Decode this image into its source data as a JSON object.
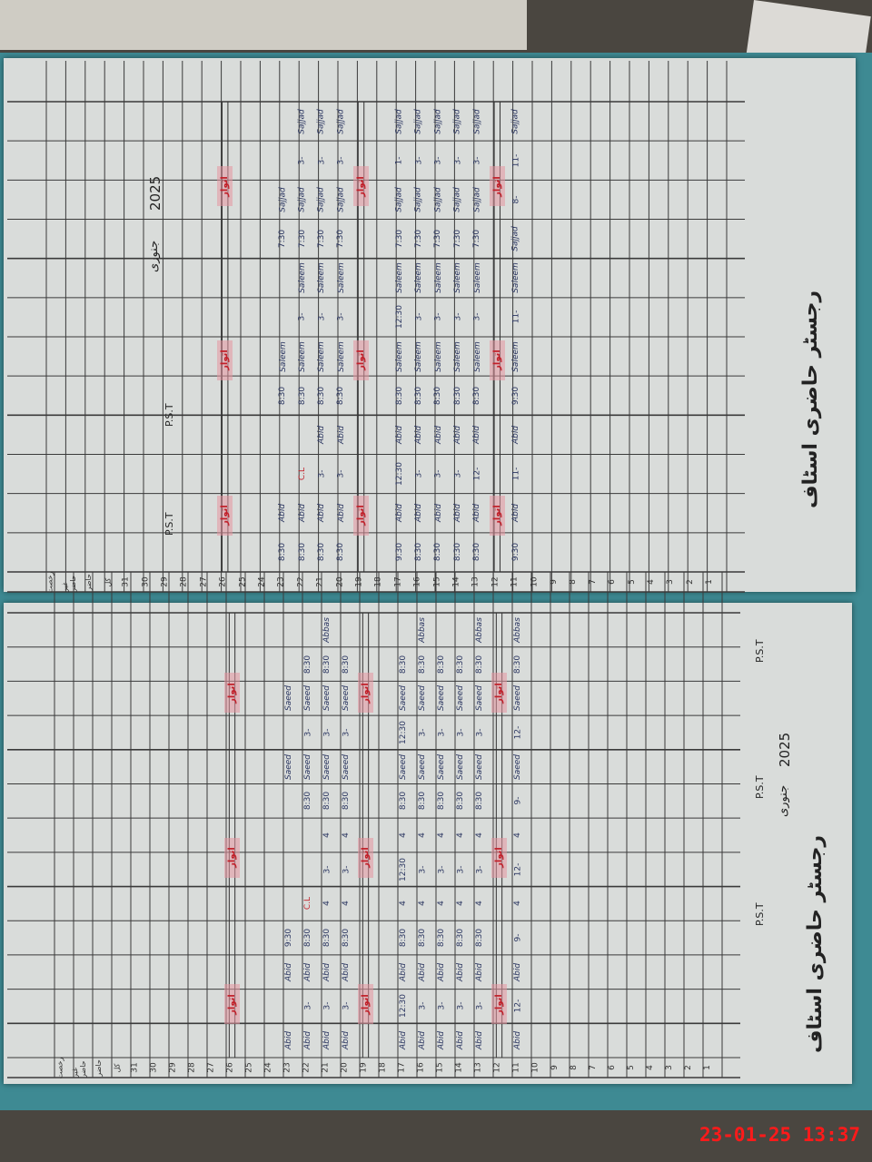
{
  "timestamp": "23-01-25 13:37",
  "colors": {
    "ink": "#2a3560",
    "sunday_red": "#c2202a",
    "folder": "#3e8a93",
    "paper": "#d9dcda"
  },
  "pages": [
    {
      "title": "رجسٹر حاضری اسٹاف",
      "year": "2025",
      "month": "جنوری",
      "staff_labels": [
        "P.S.T",
        "P.S.T"
      ],
      "day_numbers": [
        "1",
        "2",
        "3",
        "4",
        "5",
        "6",
        "7",
        "8",
        "9",
        "10",
        "11",
        "12",
        "13",
        "14",
        "15",
        "16",
        "17",
        "18",
        "19",
        "20",
        "21",
        "22",
        "23",
        "24",
        "25",
        "26",
        "27",
        "28",
        "29",
        "30",
        "31"
      ],
      "sunday_label": "اتوار",
      "sundays": [
        12,
        19,
        26
      ],
      "entries": [
        {
          "day": 11,
          "cells": [
            "9:30",
            "Abid",
            "11-",
            "Abid",
            "9:30",
            "Saleem",
            "11-",
            "Saleem",
            "Sajjad",
            "8-",
            "11-",
            "Sajjad"
          ]
        },
        {
          "day": 13,
          "cells": [
            "8:30",
            "Abid",
            "12-",
            "Abid",
            "8:30",
            "Saleem",
            "3-",
            "Saleem",
            "7:30",
            "Sajjad",
            "3-",
            "Sajjad"
          ]
        },
        {
          "day": 14,
          "cells": [
            "8:30",
            "Abid",
            "3-",
            "Abid",
            "8:30",
            "Saleem",
            "3-",
            "Saleem",
            "7:30",
            "Sajjad",
            "3-",
            "Sajjad"
          ]
        },
        {
          "day": 15,
          "cells": [
            "8:30",
            "Abid",
            "3-",
            "Abid",
            "8:30",
            "Saleem",
            "3-",
            "Saleem",
            "7:30",
            "Sajjad",
            "3-",
            "Sajjad"
          ]
        },
        {
          "day": 16,
          "cells": [
            "8:30",
            "Abid",
            "3-",
            "Abid",
            "8:30",
            "Saleem",
            "3-",
            "Saleem",
            "7:30",
            "Sajjad",
            "3-",
            "Sajjad"
          ]
        },
        {
          "day": 17,
          "cells": [
            "9:30",
            "Abid",
            "12:30",
            "Abid",
            "8:30",
            "Saleem",
            "12:30",
            "Saleem",
            "7:30",
            "Sajjad",
            "1-",
            "Sajjad"
          ]
        },
        {
          "day": 20,
          "cells": [
            "8:30",
            "Abid",
            "3-",
            "Abid",
            "8:30",
            "Saleem",
            "3-",
            "Saleem",
            "7:30",
            "Sajjad",
            "3-",
            "Sajjad"
          ]
        },
        {
          "day": 21,
          "cells": [
            "8:30",
            "Abid",
            "3-",
            "Abid",
            "8:30",
            "Saleem",
            "3-",
            "Saleem",
            "7:30",
            "Sajjad",
            "3-",
            "Sajjad"
          ]
        },
        {
          "day": 22,
          "cells": [
            "8:30",
            "Abid",
            "C.L",
            "",
            "8:30",
            "Saleem",
            "3-",
            "Saleem",
            "7:30",
            "Sajjad",
            "3-",
            "Sajjad"
          ]
        },
        {
          "day": 23,
          "cells": [
            "8:30",
            "Abid",
            "",
            "",
            "8:30",
            "Saleem",
            "",
            "",
            "7:30",
            "Sajjad",
            "",
            ""
          ]
        }
      ],
      "footer_labels": [
        "کل",
        "حاضر",
        "غیر حاضر",
        "رخصت"
      ]
    },
    {
      "title": "رجسٹر حاضری اسٹاف",
      "year": "2025",
      "month": "جنوری",
      "staff_labels": [
        "P.S.T",
        "P.S.T",
        "P.S.T"
      ],
      "day_numbers": [
        "1",
        "2",
        "3",
        "4",
        "5",
        "6",
        "7",
        "8",
        "9",
        "10",
        "11",
        "12",
        "13",
        "14",
        "15",
        "16",
        "17",
        "18",
        "19",
        "20",
        "21",
        "22",
        "23",
        "24",
        "25",
        "26",
        "27",
        "28",
        "29",
        "30",
        "31"
      ],
      "sunday_label": "اتوار",
      "sundays": [
        12,
        19,
        26
      ],
      "entries": [
        {
          "day": 11,
          "cells": [
            "Abid",
            "12-",
            "Abid",
            "9-",
            "4",
            "12-",
            "4",
            "9-",
            "Saeed",
            "12-",
            "Saeed",
            "8:30",
            "Abbas"
          ]
        },
        {
          "day": 13,
          "cells": [
            "Abid",
            "3-",
            "Abid",
            "8:30",
            "4",
            "3-",
            "4",
            "8:30",
            "Saeed",
            "3-",
            "Saeed",
            "8:30",
            "Abbas"
          ]
        },
        {
          "day": 14,
          "cells": [
            "Abid",
            "3-",
            "Abid",
            "8:30",
            "4",
            "3-",
            "4",
            "8:30",
            "Saeed",
            "3-",
            "Saeed",
            "8:30",
            ""
          ]
        },
        {
          "day": 15,
          "cells": [
            "Abid",
            "3-",
            "Abid",
            "8:30",
            "4",
            "3-",
            "4",
            "8:30",
            "Saeed",
            "3-",
            "Saeed",
            "8:30",
            ""
          ]
        },
        {
          "day": 16,
          "cells": [
            "Abid",
            "3-",
            "Abid",
            "8:30",
            "4",
            "3-",
            "4",
            "8:30",
            "Saeed",
            "3-",
            "Saeed",
            "8:30",
            "Abbas"
          ]
        },
        {
          "day": 17,
          "cells": [
            "Abid",
            "12:30",
            "Abid",
            "8:30",
            "4",
            "12:30",
            "4",
            "8:30",
            "Saeed",
            "12:30",
            "Saeed",
            "8:30",
            ""
          ]
        },
        {
          "day": 20,
          "cells": [
            "Abid",
            "3-",
            "Abid",
            "8:30",
            "4",
            "3-",
            "4",
            "8:30",
            "Saeed",
            "3-",
            "Saeed",
            "8:30",
            ""
          ]
        },
        {
          "day": 21,
          "cells": [
            "Abid",
            "3-",
            "Abid",
            "8:30",
            "4",
            "3-",
            "4",
            "8:30",
            "Saeed",
            "3-",
            "Saeed",
            "8:30",
            "Abbas"
          ]
        },
        {
          "day": 22,
          "cells": [
            "Abid",
            "3-",
            "Abid",
            "8:30",
            "C.L",
            "",
            "",
            "8:30",
            "Saeed",
            "3-",
            "Saeed",
            "8:30",
            ""
          ]
        },
        {
          "day": 23,
          "cells": [
            "Abid",
            "",
            "Abid",
            "9:30",
            "",
            "",
            "",
            "",
            "Saeed",
            "",
            "Saeed",
            "",
            ""
          ]
        }
      ],
      "footer_labels": [
        "کل",
        "حاضر",
        "غیر حاضر",
        "رخصت"
      ]
    }
  ]
}
